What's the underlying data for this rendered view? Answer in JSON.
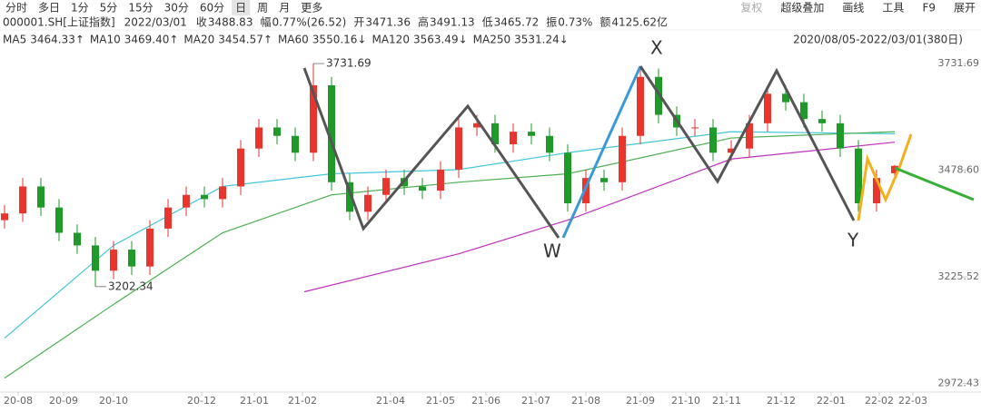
{
  "toolbar": {
    "left": [
      "分时",
      "多日",
      "1分",
      "5分",
      "15分",
      "30分",
      "60分",
      "日",
      "周",
      "月",
      "更多"
    ],
    "right": [
      "复权",
      "超级叠加",
      "画线",
      "工具",
      "F9",
      "展开"
    ]
  },
  "quote": [
    {
      "label": "000001.SH[上证指数]"
    },
    {
      "label": "2022/03/01"
    },
    {
      "label": "收",
      "value": "3488.83"
    },
    {
      "label": "幅",
      "value": "0.77%(26.52)"
    },
    {
      "label": "开",
      "value": "3471.36"
    },
    {
      "label": "高",
      "value": "3491.13"
    },
    {
      "label": "低",
      "value": "3465.72"
    },
    {
      "label": "振",
      "value": "0.73%"
    },
    {
      "label": "额",
      "value": "4125.62亿"
    }
  ],
  "ma_legend": [
    {
      "label": "MA5",
      "value": "3464.33↑",
      "color": "#d9303f"
    },
    {
      "label": "MA10",
      "value": "3469.40↑",
      "color": "#3f7fd0"
    },
    {
      "label": "MA20",
      "value": "3454.57↑",
      "color": "#2c3fb0"
    },
    {
      "label": "MA60",
      "value": "3550.16↓",
      "color": "#2bb6cc"
    },
    {
      "label": "MA120",
      "value": "3563.49↓",
      "color": "#3aa83a"
    },
    {
      "label": "MA250",
      "value": "3531.24↓",
      "color": "#c030c0"
    }
  ],
  "range": "2020/08/05-2022/03/01(380日)",
  "chart_data": {
    "type": "candlestick",
    "candles": {
      "open": [
        3360,
        3376,
        3440,
        3390,
        3330,
        3300,
        3240,
        3290,
        3250,
        3340,
        3390,
        3420,
        3410,
        3440,
        3530,
        3580,
        3560,
        3520,
        3680,
        3450,
        3380,
        3420,
        3460,
        3440,
        3430,
        3480,
        3580,
        3590,
        3540,
        3570,
        3560,
        3520,
        3400,
        3460,
        3450,
        3560,
        3700,
        3610,
        3580,
        3580,
        3520,
        3530,
        3590,
        3660,
        3640,
        3600,
        3590,
        3530,
        3400,
        3471.36
      ],
      "close": [
        3376,
        3440,
        3390,
        3330,
        3300,
        3240,
        3290,
        3250,
        3340,
        3390,
        3420,
        3410,
        3440,
        3530,
        3580,
        3560,
        3520,
        3680,
        3450,
        3380,
        3420,
        3460,
        3440,
        3430,
        3480,
        3580,
        3590,
        3540,
        3570,
        3560,
        3520,
        3400,
        3460,
        3450,
        3560,
        3700,
        3610,
        3580,
        3580,
        3520,
        3530,
        3590,
        3660,
        3640,
        3600,
        3590,
        3530,
        3400,
        3460,
        3488.83
      ],
      "high": [
        3396,
        3460,
        3460,
        3410,
        3350,
        3320,
        3310,
        3310,
        3360,
        3410,
        3440,
        3440,
        3460,
        3550,
        3600,
        3600,
        3580,
        3731.69,
        3700,
        3470,
        3440,
        3480,
        3480,
        3460,
        3500,
        3600,
        3610,
        3610,
        3590,
        3590,
        3580,
        3540,
        3480,
        3480,
        3580,
        3720,
        3720,
        3630,
        3600,
        3600,
        3550,
        3610,
        3680,
        3680,
        3660,
        3620,
        3610,
        3550,
        3480,
        3491.13
      ],
      "low": [
        3340,
        3356,
        3370,
        3310,
        3280,
        3202.34,
        3220,
        3230,
        3230,
        3320,
        3370,
        3390,
        3390,
        3420,
        3510,
        3540,
        3500,
        3500,
        3430,
        3360,
        3360,
        3400,
        3420,
        3410,
        3410,
        3460,
        3560,
        3520,
        3520,
        3540,
        3500,
        3380,
        3380,
        3430,
        3430,
        3540,
        3590,
        3560,
        3560,
        3500,
        3500,
        3510,
        3570,
        3620,
        3580,
        3570,
        3510,
        3380,
        3380,
        3465.72
      ],
      "up_color": "#e8352e",
      "down_color": "#1f9a2a"
    },
    "series": [
      {
        "name": "MA60",
        "color": "#41c6d9",
        "x": [
          0,
          6,
          12,
          18,
          25,
          31,
          40,
          49
        ],
        "values": [
          3080,
          3300,
          3440,
          3470,
          3480,
          3520,
          3570,
          3565
        ]
      },
      {
        "name": "MA120",
        "color": "#4caf50",
        "x": [
          0,
          6,
          12,
          18,
          25,
          31,
          40,
          49
        ],
        "values": [
          2985,
          3160,
          3330,
          3420,
          3450,
          3470,
          3555,
          3570
        ]
      },
      {
        "name": "MA250",
        "color": "#c030c0",
        "x": [
          16.5,
          25,
          31,
          40,
          49
        ],
        "values": [
          3190,
          3280,
          3360,
          3505,
          3545
        ]
      }
    ],
    "ylim": [
      2952,
      3749
    ],
    "yticks": [
      3731.69,
      {
        "value": 3478.6,
        "label": "3478.60"
      },
      3225.52,
      2972.43
    ],
    "xlim": [
      -0.25,
      52.75
    ],
    "xticks": [
      {
        "value": 0.75,
        "label": "20-08"
      },
      {
        "value": 3.25,
        "label": "20-09"
      },
      {
        "value": 6,
        "label": "20-10"
      },
      {
        "value": 10.85,
        "label": "20-12"
      },
      {
        "value": 13.75,
        "label": "21-01"
      },
      {
        "value": 16.4,
        "label": "21-02"
      },
      {
        "value": 21.25,
        "label": "21-04"
      },
      {
        "value": 24,
        "label": "21-05"
      },
      {
        "value": 26.5,
        "label": "21-06"
      },
      {
        "value": 29.25,
        "label": "21-07"
      },
      {
        "value": 32,
        "label": "21-08"
      },
      {
        "value": 35,
        "label": "21-09"
      },
      {
        "value": 37.5,
        "label": "21-10"
      },
      {
        "value": 39.75,
        "label": "21-11"
      },
      {
        "value": 42.75,
        "label": "21-12"
      },
      {
        "value": 45.5,
        "label": "22-01"
      },
      {
        "value": 48.15,
        "label": "22-02"
      },
      {
        "value": 50,
        "label": "22-03"
      }
    ],
    "annotations": [
      "X",
      "W",
      "Y"
    ]
  }
}
